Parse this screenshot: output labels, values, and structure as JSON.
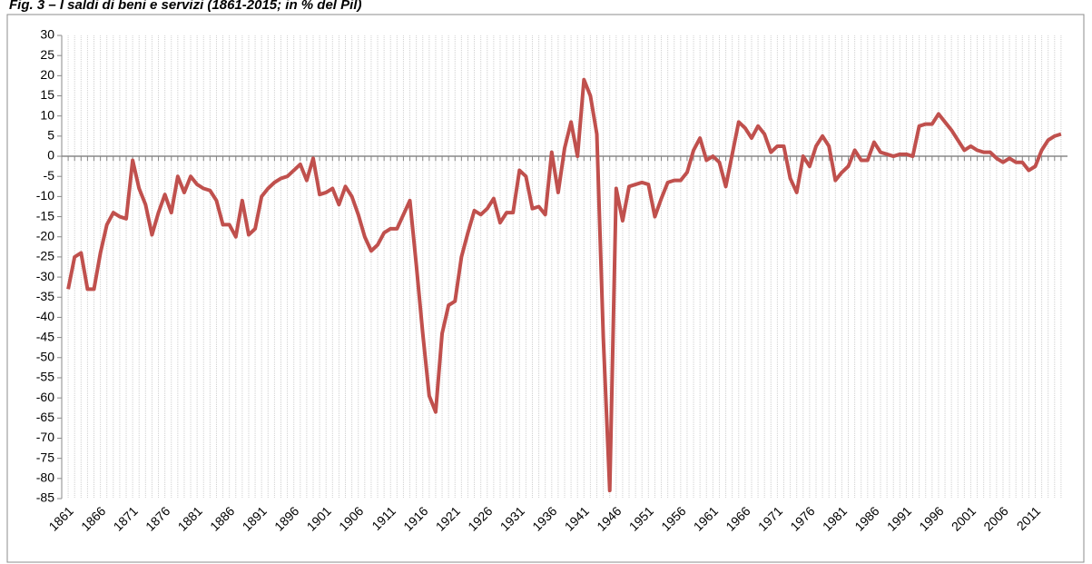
{
  "chart_data": {
    "type": "line",
    "title": "Fig. 3 – I saldi di beni e servizi (1861-2015; in % del Pil)",
    "x": [
      1861,
      1862,
      1863,
      1864,
      1865,
      1866,
      1867,
      1868,
      1869,
      1870,
      1871,
      1872,
      1873,
      1874,
      1875,
      1876,
      1877,
      1878,
      1879,
      1880,
      1881,
      1882,
      1883,
      1884,
      1885,
      1886,
      1887,
      1888,
      1889,
      1890,
      1891,
      1892,
      1893,
      1894,
      1895,
      1896,
      1897,
      1898,
      1899,
      1900,
      1901,
      1902,
      1903,
      1904,
      1905,
      1906,
      1907,
      1908,
      1909,
      1910,
      1911,
      1912,
      1913,
      1914,
      1915,
      1916,
      1917,
      1918,
      1919,
      1920,
      1921,
      1922,
      1923,
      1924,
      1925,
      1926,
      1927,
      1928,
      1929,
      1930,
      1931,
      1932,
      1933,
      1934,
      1935,
      1936,
      1937,
      1938,
      1939,
      1940,
      1941,
      1942,
      1943,
      1944,
      1945,
      1946,
      1947,
      1948,
      1949,
      1950,
      1951,
      1952,
      1953,
      1954,
      1955,
      1956,
      1957,
      1958,
      1959,
      1960,
      1961,
      1962,
      1963,
      1964,
      1965,
      1966,
      1967,
      1968,
      1969,
      1970,
      1971,
      1972,
      1973,
      1974,
      1975,
      1976,
      1977,
      1978,
      1979,
      1980,
      1981,
      1982,
      1983,
      1984,
      1985,
      1986,
      1987,
      1988,
      1989,
      1990,
      1991,
      1992,
      1993,
      1994,
      1995,
      1996,
      1997,
      1998,
      1999,
      2000,
      2001,
      2002,
      2003,
      2004,
      2005,
      2006,
      2007,
      2008,
      2009,
      2010,
      2011,
      2012,
      2013,
      2014,
      2015
    ],
    "series": [
      {
        "color": "#c0504d",
        "values": [
          -33,
          -25,
          -24,
          -33,
          -33,
          -24,
          -17,
          -14,
          -15,
          -15.5,
          -1,
          -8,
          -12,
          -19.5,
          -14,
          -9.5,
          -14,
          -5,
          -9,
          -5,
          -7,
          -8,
          -8.5,
          -11,
          -17,
          -17,
          -20,
          -11,
          -19.5,
          -18,
          -10,
          -8,
          -6.5,
          -5.5,
          -5,
          -3.5,
          -2,
          -6,
          -0.5,
          -9.5,
          -9,
          -8,
          -12,
          -7.5,
          -10,
          -14.5,
          -20,
          -23.5,
          -22,
          -19,
          -18,
          -18,
          -14.5,
          -11,
          -27,
          -44,
          -59.5,
          -63.5,
          -44,
          -37,
          -36,
          -25,
          -19,
          -13.5,
          -14.5,
          -13,
          -10.5,
          -16.5,
          -14,
          -14,
          -3.5,
          -5,
          -13,
          -12.5,
          -14.5,
          1,
          -9,
          2,
          8.5,
          0,
          19,
          15,
          5.5,
          -45,
          -83,
          -8,
          -16,
          -7.5,
          -7,
          -6.5,
          -7,
          -15,
          -10.5,
          -6.5,
          -6,
          -6,
          -4,
          1.5,
          4.5,
          -1,
          0,
          -1.5,
          -7.5,
          0.5,
          8.5,
          7,
          4.5,
          7.5,
          5.5,
          1,
          2.5,
          2.5,
          -5.5,
          -9,
          0,
          -2.5,
          2.5,
          5,
          2.5,
          -6,
          -4,
          -2.5,
          1.5,
          -1,
          -1,
          3.5,
          1,
          0.5,
          0,
          0.5,
          0.5,
          0,
          7.5,
          8,
          8,
          10.5,
          8.5,
          6.5,
          4,
          1.5,
          2.5,
          1.5,
          1,
          1,
          -0.5,
          -1.5,
          -0.5,
          -1.5,
          -1.5,
          -3.5,
          -2.5,
          1.5,
          4,
          5,
          5.5
        ]
      }
    ],
    "xlim": [
      1860,
      2016
    ],
    "xticks": [
      1861,
      1866,
      1871,
      1876,
      1881,
      1886,
      1891,
      1896,
      1901,
      1906,
      1911,
      1916,
      1921,
      1926,
      1931,
      1936,
      1941,
      1946,
      1951,
      1956,
      1961,
      1966,
      1971,
      1976,
      1981,
      1986,
      1991,
      1996,
      2001,
      2006,
      2011
    ],
    "ylim": [
      -85,
      30
    ],
    "yticks": [
      -85,
      -80,
      -75,
      -70,
      -65,
      -60,
      -55,
      -50,
      -45,
      -40,
      -35,
      -30,
      -25,
      -20,
      -15,
      -10,
      -5,
      0,
      5,
      10,
      15,
      20,
      25,
      30
    ],
    "grid": true
  }
}
